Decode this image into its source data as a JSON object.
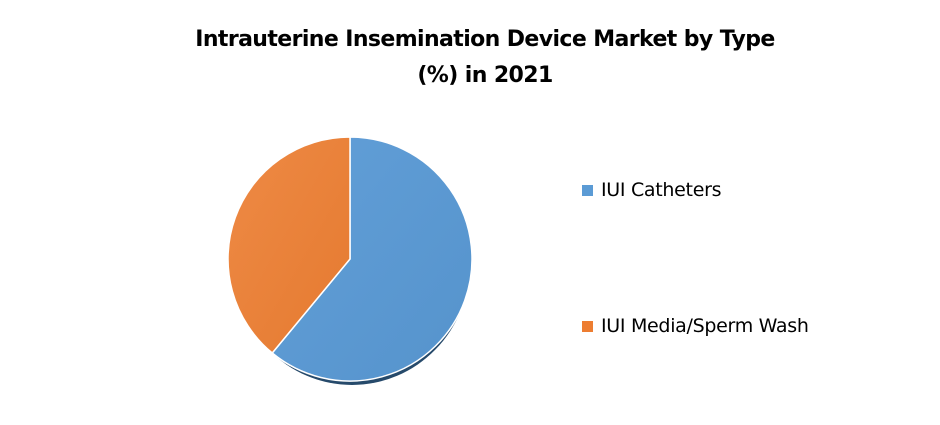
{
  "chart_data": {
    "type": "pie",
    "title": "Intrauterine Insemination Device Market by Type (%) in 2021",
    "title_lines": [
      "Intrauterine Insemination Device Market by Type",
      "(%) in 2021"
    ],
    "categories": [
      "IUI Catheters",
      "IUI Media/Sperm Wash"
    ],
    "values": [
      61,
      39
    ],
    "colors": [
      "#5b9bd5",
      "#ed7d31"
    ],
    "legend_position": "right",
    "data_labels": false
  },
  "legend": {
    "items": [
      {
        "label": "IUI Catheters",
        "color": "#5b9bd5"
      },
      {
        "label": "IUI Media/Sperm Wash",
        "color": "#ed7d31"
      }
    ]
  }
}
